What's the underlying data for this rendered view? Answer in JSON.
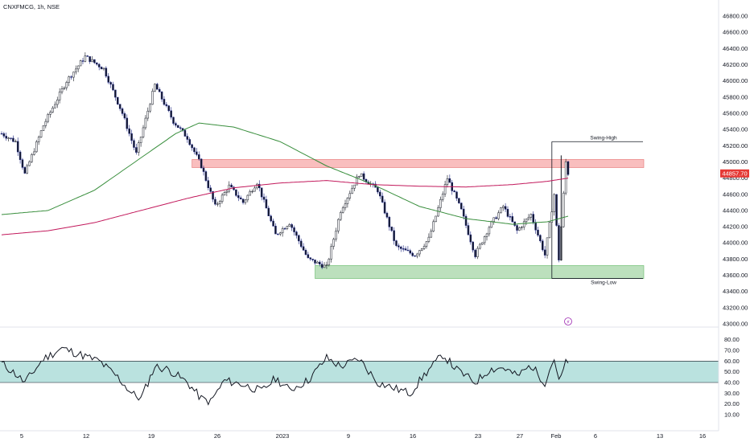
{
  "header": {
    "title": "CNXFMCG, 1h, NSE"
  },
  "price_badge": "44857.70",
  "chart_data": [
    {
      "type": "candlestick",
      "title": "CNXFMCG, 1h, NSE",
      "ylim": [
        43000,
        46900
      ],
      "y_ticks": [
        "46800.00",
        "46600.00",
        "46400.00",
        "46200.00",
        "46000.00",
        "45800.00",
        "45600.00",
        "45400.00",
        "45200.00",
        "45000.00",
        "44800.00",
        "44600.00",
        "44400.00",
        "44200.00",
        "44000.00",
        "43800.00",
        "43600.00",
        "43400.00",
        "43200.00",
        "43000.00"
      ],
      "x_ticks": [
        "5",
        "12",
        "19",
        "26",
        "2023",
        "9",
        "16",
        "23",
        "27",
        "Feb",
        "6",
        "13",
        "16"
      ],
      "key_points": [
        {
          "bar": 0,
          "price": 45350
        },
        {
          "bar": 6,
          "price": 45250
        },
        {
          "bar": 10,
          "price": 44850
        },
        {
          "bar": 18,
          "price": 45450
        },
        {
          "bar": 28,
          "price": 46000
        },
        {
          "bar": 36,
          "price": 46300
        },
        {
          "bar": 44,
          "price": 46150
        },
        {
          "bar": 52,
          "price": 45600
        },
        {
          "bar": 58,
          "price": 45100
        },
        {
          "bar": 66,
          "price": 45950
        },
        {
          "bar": 74,
          "price": 45500
        },
        {
          "bar": 80,
          "price": 45300
        },
        {
          "bar": 86,
          "price": 44950
        },
        {
          "bar": 92,
          "price": 44450
        },
        {
          "bar": 98,
          "price": 44700
        },
        {
          "bar": 104,
          "price": 44500
        },
        {
          "bar": 110,
          "price": 44750
        },
        {
          "bar": 118,
          "price": 44100
        },
        {
          "bar": 124,
          "price": 44250
        },
        {
          "bar": 132,
          "price": 43800
        },
        {
          "bar": 140,
          "price": 43700
        },
        {
          "bar": 146,
          "price": 44400
        },
        {
          "bar": 154,
          "price": 44850
        },
        {
          "bar": 162,
          "price": 44650
        },
        {
          "bar": 170,
          "price": 43950
        },
        {
          "bar": 178,
          "price": 43850
        },
        {
          "bar": 184,
          "price": 44050
        },
        {
          "bar": 192,
          "price": 44800
        },
        {
          "bar": 198,
          "price": 44400
        },
        {
          "bar": 204,
          "price": 43850
        },
        {
          "bar": 210,
          "price": 44200
        },
        {
          "bar": 216,
          "price": 44450
        },
        {
          "bar": 222,
          "price": 44150
        },
        {
          "bar": 228,
          "price": 44350
        },
        {
          "bar": 234,
          "price": 43850
        },
        {
          "bar": 238,
          "price": 44600
        },
        {
          "bar": 240,
          "price": 43800
        },
        {
          "bar": 243,
          "price": 45000
        },
        {
          "bar": 244,
          "price": 44860
        }
      ],
      "ma_green": [
        {
          "bar": 0,
          "price": 44350
        },
        {
          "bar": 20,
          "price": 44400
        },
        {
          "bar": 40,
          "price": 44650
        },
        {
          "bar": 60,
          "price": 45050
        },
        {
          "bar": 75,
          "price": 45350
        },
        {
          "bar": 85,
          "price": 45480
        },
        {
          "bar": 100,
          "price": 45430
        },
        {
          "bar": 120,
          "price": 45250
        },
        {
          "bar": 140,
          "price": 44950
        },
        {
          "bar": 160,
          "price": 44720
        },
        {
          "bar": 180,
          "price": 44450
        },
        {
          "bar": 200,
          "price": 44300
        },
        {
          "bar": 220,
          "price": 44230
        },
        {
          "bar": 235,
          "price": 44260
        },
        {
          "bar": 244,
          "price": 44330
        }
      ],
      "ma_red": [
        {
          "bar": 0,
          "price": 44100
        },
        {
          "bar": 20,
          "price": 44150
        },
        {
          "bar": 40,
          "price": 44250
        },
        {
          "bar": 60,
          "price": 44400
        },
        {
          "bar": 80,
          "price": 44550
        },
        {
          "bar": 100,
          "price": 44680
        },
        {
          "bar": 120,
          "price": 44740
        },
        {
          "bar": 140,
          "price": 44770
        },
        {
          "bar": 160,
          "price": 44720
        },
        {
          "bar": 180,
          "price": 44700
        },
        {
          "bar": 200,
          "price": 44690
        },
        {
          "bar": 220,
          "price": 44720
        },
        {
          "bar": 235,
          "price": 44760
        },
        {
          "bar": 244,
          "price": 44800
        }
      ],
      "zones": {
        "resistance": {
          "from": 44930,
          "to": 45030,
          "start_bar": 82,
          "color": "#f7a8a8"
        },
        "support": {
          "from": 43560,
          "to": 43720,
          "start_bar": 135,
          "color": "#a5d6a7"
        }
      },
      "annotations": [
        {
          "text": "Swing-High",
          "price": 45250
        },
        {
          "text": "Swing-Low",
          "price": 43560
        }
      ]
    },
    {
      "type": "line",
      "name_hidden": true,
      "ylim": [
        10,
        85
      ],
      "y_ticks": [
        "80.00",
        "70.00",
        "60.00",
        "50.00",
        "40.00",
        "30.00",
        "20.00",
        "10.00"
      ],
      "band": {
        "from": 40,
        "to": 60,
        "color": "#b2dfdb"
      },
      "key_points": [
        {
          "bar": 0,
          "v": 58
        },
        {
          "bar": 6,
          "v": 48
        },
        {
          "bar": 10,
          "v": 40
        },
        {
          "bar": 18,
          "v": 62
        },
        {
          "bar": 26,
          "v": 72
        },
        {
          "bar": 34,
          "v": 66
        },
        {
          "bar": 42,
          "v": 60
        },
        {
          "bar": 50,
          "v": 45
        },
        {
          "bar": 56,
          "v": 30
        },
        {
          "bar": 60,
          "v": 25
        },
        {
          "bar": 66,
          "v": 55
        },
        {
          "bar": 72,
          "v": 52
        },
        {
          "bar": 80,
          "v": 40
        },
        {
          "bar": 86,
          "v": 25
        },
        {
          "bar": 90,
          "v": 22
        },
        {
          "bar": 96,
          "v": 42
        },
        {
          "bar": 104,
          "v": 38
        },
        {
          "bar": 112,
          "v": 32
        },
        {
          "bar": 118,
          "v": 44
        },
        {
          "bar": 124,
          "v": 33
        },
        {
          "bar": 132,
          "v": 42
        },
        {
          "bar": 140,
          "v": 63
        },
        {
          "bar": 146,
          "v": 55
        },
        {
          "bar": 154,
          "v": 62
        },
        {
          "bar": 162,
          "v": 40
        },
        {
          "bar": 170,
          "v": 34
        },
        {
          "bar": 176,
          "v": 30
        },
        {
          "bar": 182,
          "v": 47
        },
        {
          "bar": 190,
          "v": 66
        },
        {
          "bar": 196,
          "v": 52
        },
        {
          "bar": 204,
          "v": 40
        },
        {
          "bar": 210,
          "v": 52
        },
        {
          "bar": 216,
          "v": 54
        },
        {
          "bar": 222,
          "v": 46
        },
        {
          "bar": 228,
          "v": 56
        },
        {
          "bar": 234,
          "v": 40
        },
        {
          "bar": 238,
          "v": 63
        },
        {
          "bar": 240,
          "v": 40
        },
        {
          "bar": 243,
          "v": 58
        },
        {
          "bar": 244,
          "v": 57
        }
      ]
    }
  ]
}
